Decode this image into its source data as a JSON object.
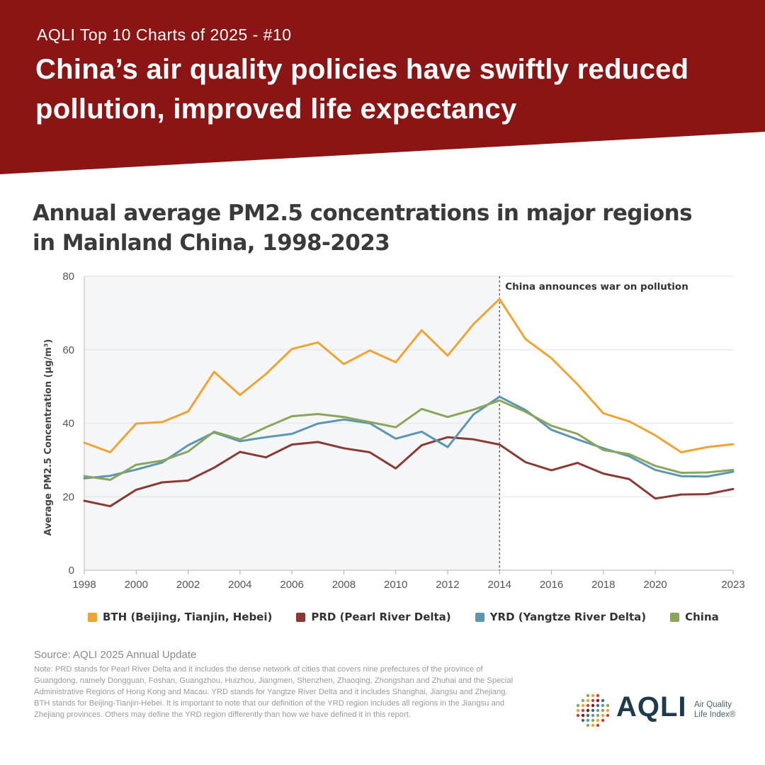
{
  "banner": {
    "kicker": "AQLI Top 10 Charts of 2025 - #10",
    "headline": "China’s air quality policies have swiftly reduced pollution, improved life expectancy",
    "color": "#8b1414"
  },
  "chart_title": "Annual average PM2.5 concentrations in major regions in Mainland China, 1998-2023",
  "chart_data": {
    "type": "line",
    "title": "Annual average PM2.5 concentrations in major regions in Mainland China, 1998-2023",
    "xlabel": "",
    "ylabel": "Average PM2.5 Concentration (µg/m³)",
    "xlim": [
      1998,
      2023
    ],
    "ylim": [
      0,
      80
    ],
    "x_ticks": [
      "1998",
      "2000",
      "2002",
      "2004",
      "2006",
      "2008",
      "2010",
      "2012",
      "2014",
      "2016",
      "2018",
      "2020",
      "2023"
    ],
    "y_ticks": [
      "0",
      "20",
      "40",
      "60",
      "80"
    ],
    "grid": "horizontal",
    "shaded_region": [
      1998,
      2014
    ],
    "annotation": {
      "x": 2014,
      "text": "China announces war on pollution"
    },
    "x": [
      1998,
      1999,
      2000,
      2001,
      2002,
      2003,
      2004,
      2005,
      2006,
      2007,
      2008,
      2009,
      2010,
      2011,
      2012,
      2013,
      2014,
      2015,
      2016,
      2017,
      2018,
      2019,
      2020,
      2021,
      2022,
      2023
    ],
    "series": [
      {
        "name": "BTH (Beijing, Tianjin, Hebei)",
        "color": "#f0a330",
        "values": [
          34.7,
          32.1,
          39.9,
          40.3,
          43.2,
          54.0,
          47.7,
          53.4,
          60.2,
          62.0,
          56.1,
          59.8,
          56.6,
          65.3,
          58.4,
          67.0,
          73.8,
          62.9,
          57.7,
          50.6,
          42.7,
          40.5,
          36.7,
          32.1,
          33.5,
          34.3
        ]
      },
      {
        "name": "PRD (Pearl River Delta)",
        "color": "#8b3a33",
        "values": [
          18.9,
          17.4,
          21.9,
          23.9,
          24.4,
          27.9,
          32.2,
          30.7,
          34.2,
          34.9,
          33.2,
          32.1,
          27.7,
          34.0,
          36.2,
          35.6,
          34.2,
          29.4,
          27.2,
          29.2,
          26.3,
          24.8,
          19.5,
          20.6,
          20.7,
          22.1
        ]
      },
      {
        "name": "YRD (Yangtze River Delta)",
        "color": "#5b97b3",
        "values": [
          25.0,
          25.7,
          27.4,
          29.3,
          34.0,
          37.5,
          35.1,
          36.2,
          37.1,
          39.9,
          41.0,
          40.0,
          35.8,
          37.7,
          33.5,
          42.4,
          47.2,
          43.6,
          38.2,
          35.6,
          33.2,
          31.0,
          27.3,
          25.6,
          25.5,
          26.8
        ]
      },
      {
        "name": "China",
        "color": "#8aa65a",
        "values": [
          25.6,
          24.6,
          28.7,
          29.8,
          32.3,
          37.7,
          35.6,
          38.9,
          41.9,
          42.5,
          41.7,
          40.3,
          38.9,
          43.9,
          41.7,
          43.7,
          46.2,
          43.1,
          39.3,
          37.1,
          32.7,
          31.6,
          28.4,
          26.5,
          26.6,
          27.3
        ]
      }
    ]
  },
  "source": "Source: AQLI 2025 Annual Update",
  "note": "Note: PRD stands for Pearl River Delta and it includes the dense network of cities that covers nine prefectures of the province of Guangdong, namely Dongguan, Foshan, Guangzhou, Huizhou, Jiangmen, Shenzhen, Zhaoqing, Zhongshan and Zhuhai and the Special Administrative Regions of Hong Kong and Macau. YRD stands for Yangtze River Delta and it includes Shanghai, Jiangsu and Zhejiang. BTH stands for Beijing-Tianjin-Hebei. It is important to note that our definition of the YRD region includes all regions in the Jiangsu and Zhejiang provinces. Others may define the YRD region differently than how we have defined it in this report.",
  "logo": {
    "wordmark": "AQLI",
    "subtitle": "Air Quality Life Index®"
  }
}
